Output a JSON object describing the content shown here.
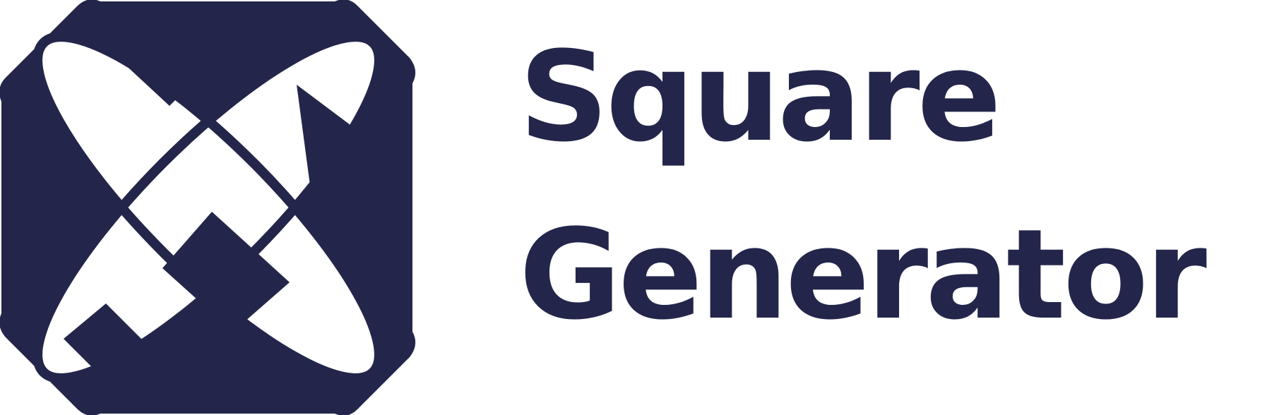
{
  "logo": {
    "name": "square-generator-logo",
    "color": "#23264a",
    "wordmark": {
      "line1": "Square",
      "line2": "Generator"
    }
  }
}
